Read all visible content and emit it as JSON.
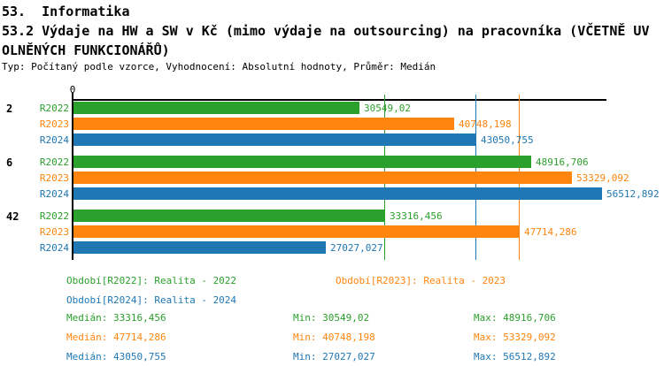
{
  "header": {
    "title_line1": "53.  Informatika",
    "title_line2": "53.2 Výdaje na HW a SW v Kč (mimo výdaje na outsourcing) na pracovníka (VČETNĚ UV",
    "title_line3": "OLNĚNÝCH FUNKCIONÁŘŮ)",
    "subtitle": "Typ: Počítaný podle vzorce, Vyhodnocení: Absolutní hodnoty, Průměr: Medián"
  },
  "chart_data": {
    "type": "bar",
    "orientation": "horizontal",
    "title": "53.2 Výdaje na HW a SW v Kč (mimo výdaje na outsourcing) na pracovníka (VČETNĚ UVOLNĚNÝCH FUNKCIONÁŘŮ)",
    "axis": {
      "zero_label": "0",
      "x_min": 0,
      "x_max": 57000,
      "grid": "median-reference-lines"
    },
    "legend_position": "bottom",
    "categories": [
      "2",
      "6",
      "42"
    ],
    "series": [
      {
        "name": "R2022",
        "color": "#2CA02C",
        "legend_label": "Období[R2022]: Realita - 2022",
        "values": [
          30549.02,
          48916.706,
          33316.456
        ],
        "median": 33316.456,
        "stats": {
          "median_label": "Medián: 33316,456",
          "min_label": "Min: 30549,02",
          "max_label": "Max: 48916,706"
        }
      },
      {
        "name": "R2023",
        "color": "#FF850E",
        "legend_label": "Období[R2023]: Realita - 2023",
        "values": [
          40748.198,
          53329.092,
          47714.286
        ],
        "median": 47714.286,
        "stats": {
          "median_label": "Medián: 47714,286",
          "min_label": "Min: 40748,198",
          "max_label": "Max: 53329,092"
        }
      },
      {
        "name": "R2024",
        "color": "#1F77B4",
        "legend_label": "Období[R2024]: Realita - 2024",
        "values": [
          43050.755,
          56512.892,
          27027.027
        ],
        "median": 43050.755,
        "stats": {
          "median_label": "Medián: 43050,755",
          "min_label": "Min: 27027,027",
          "max_label": "Max: 56512,892"
        }
      }
    ],
    "groups": [
      {
        "label": "2",
        "values": [
          30549.02,
          40748.198,
          43050.755
        ],
        "value_labels": [
          "30549,02",
          "40748,198",
          "43050,755"
        ]
      },
      {
        "label": "6",
        "values": [
          48916.706,
          53329.092,
          56512.892
        ],
        "value_labels": [
          "48916,706",
          "53329,092",
          "56512,892"
        ]
      },
      {
        "label": "42",
        "values": [
          33316.456,
          47714.286,
          27027.027
        ],
        "value_labels": [
          "33316,456",
          "47714,286",
          "27027,027"
        ]
      }
    ]
  }
}
